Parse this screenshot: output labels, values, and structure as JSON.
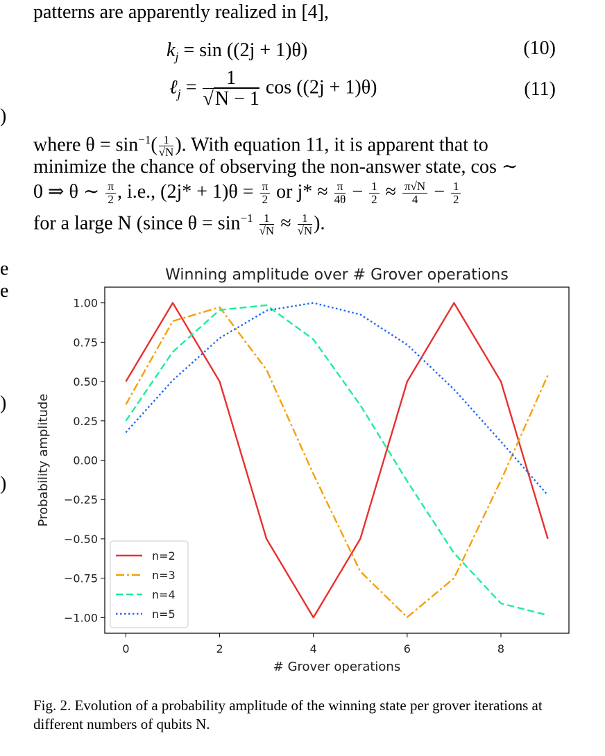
{
  "text": {
    "intro_line": "patterns are apparently realized in [4],",
    "eq10": {
      "lhs": "k",
      "sub": "j",
      "rhs": "= sin ((2j + 1)θ)",
      "number": "(10)"
    },
    "eq11": {
      "lhs": "ℓ",
      "sub": "j",
      "num": "1",
      "den": "N − 1",
      "rhs": "cos ((2j + 1)θ)",
      "number": "(11)"
    },
    "para_line1_a": "where θ = sin",
    "para_line1_sup": "−1",
    "para_line1_b": ". With equation 11, it is apparent that to",
    "para_line2": "minimize the chance of observing the non-answer state, cos ∼",
    "para_line3_a": "0 ⇒ θ ∼",
    "para_line3_b": ", i.e., (2j* + 1)θ =",
    "para_line3_c": "or j* ≈",
    "para_line3_d": "−",
    "para_line3_e": "≈",
    "para_line3_f": "−",
    "para_line4_a": "for a large N (since θ = sin",
    "para_line4_sup": "−1",
    "para_line4_b": "≈",
    "para_line4_c": ").",
    "frac_pi": "π",
    "frac_2": "2",
    "frac_4theta": "4θ",
    "frac_1": "1",
    "frac_4": "4",
    "frac_pisqrtN": "π√N",
    "frac_sqrtN": "√N",
    "caption": "Fig. 2.  Evolution of a probability amplitude of the winning state per grover iterations at different numbers of qubits N.",
    "margin_fragments": [
      ")",
      "e",
      "e",
      ")",
      ")"
    ]
  },
  "chart_data": {
    "type": "line",
    "title": "Winning amplitude over # Grover operations",
    "xlabel": "# Grover operations",
    "ylabel": "Probability amplitude",
    "xlim": [
      -0.45,
      9.45
    ],
    "ylim": [
      -1.1,
      1.1
    ],
    "xticks": [
      "0",
      "2",
      "4",
      "6",
      "8"
    ],
    "xtick_values": [
      0,
      2,
      4,
      6,
      8
    ],
    "yticks": [
      "1.00",
      "0.75",
      "0.50",
      "0.25",
      "0.00",
      "−0.25",
      "−0.50",
      "−0.75",
      "−1.00"
    ],
    "ytick_values": [
      1.0,
      0.75,
      0.5,
      0.25,
      0.0,
      -0.25,
      -0.5,
      -0.75,
      -1.0
    ],
    "legend_position": "lower-left",
    "grid": false,
    "x": [
      0,
      1,
      2,
      3,
      4,
      5,
      6,
      7,
      8,
      9
    ],
    "series": [
      {
        "name": "n=2",
        "color": "#e8312f",
        "style": "solid",
        "values": [
          0.5,
          1.0,
          0.5,
          -0.5,
          -1.0,
          -0.5,
          0.5,
          1.0,
          0.5,
          -0.5
        ]
      },
      {
        "name": "n=3",
        "color": "#f5a00a",
        "style": "dashdot",
        "values": [
          0.354,
          0.884,
          0.972,
          0.575,
          -0.088,
          -0.707,
          -0.998,
          -0.75,
          -0.129,
          0.54
        ]
      },
      {
        "name": "n=4",
        "color": "#1ded9a",
        "style": "dashed",
        "values": [
          0.25,
          0.688,
          0.955,
          0.985,
          0.768,
          0.35,
          -0.134,
          -0.591,
          -0.91,
          -0.986
        ]
      },
      {
        "name": "n=5",
        "color": "#2066f5",
        "style": "dotted",
        "values": [
          0.177,
          0.508,
          0.776,
          0.951,
          1.0,
          0.926,
          0.734,
          0.45,
          0.118,
          -0.222
        ]
      }
    ]
  }
}
